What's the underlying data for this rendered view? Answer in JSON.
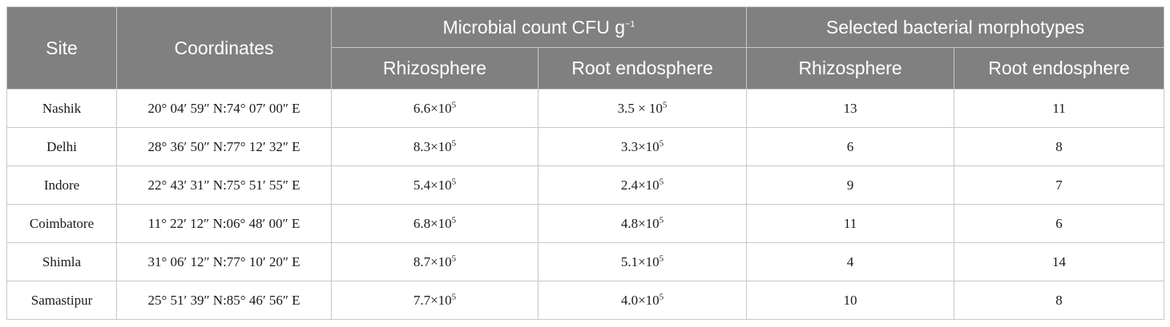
{
  "headers": {
    "site": "Site",
    "coordinates": "Coordinates",
    "microbial_count": "Microbial count CFU g",
    "microbial_count_exp": "−1",
    "morphotypes": "Selected bacterial morphotypes",
    "rhizosphere": "Rhizosphere",
    "root_endosphere": "Root endosphere"
  },
  "rows": [
    {
      "site": "Nashik",
      "coords": "20° 04′ 59″ N:74° 07′ 00″ E",
      "count_rhizo": "6.6×10",
      "count_rhizo_exp": "5",
      "count_root": "3.5 × 10",
      "count_root_exp": "5",
      "morph_rhizo": "13",
      "morph_root": "11"
    },
    {
      "site": "Delhi",
      "coords": "28° 36′ 50″ N:77° 12′ 32″ E",
      "count_rhizo": "8.3×10",
      "count_rhizo_exp": "5",
      "count_root": "3.3×10",
      "count_root_exp": "5",
      "morph_rhizo": "6",
      "morph_root": "8"
    },
    {
      "site": "Indore",
      "coords": "22° 43′ 31″ N:75° 51′ 55″ E",
      "count_rhizo": "5.4×10",
      "count_rhizo_exp": "5",
      "count_root": "2.4×10",
      "count_root_exp": "5",
      "morph_rhizo": "9",
      "morph_root": "7"
    },
    {
      "site": "Coimbatore",
      "coords": "11° 22′ 12″ N:06° 48′ 00″ E",
      "count_rhizo": "6.8×10",
      "count_rhizo_exp": "5",
      "count_root": "4.8×10",
      "count_root_exp": "5",
      "morph_rhizo": "11",
      "morph_root": "6"
    },
    {
      "site": "Shimla",
      "coords": "31° 06′ 12″ N:77° 10′ 20″ E",
      "count_rhizo": "8.7×10",
      "count_rhizo_exp": "5",
      "count_root": "5.1×10",
      "count_root_exp": "5",
      "morph_rhizo": "4",
      "morph_root": "14"
    },
    {
      "site": "Samastipur",
      "coords": "25° 51′ 39″ N:85° 46′ 56″ E",
      "count_rhizo": "7.7×10",
      "count_rhizo_exp": "5",
      "count_root": "4.0×10",
      "count_root_exp": "5",
      "morph_rhizo": "10",
      "morph_root": "8"
    }
  ]
}
